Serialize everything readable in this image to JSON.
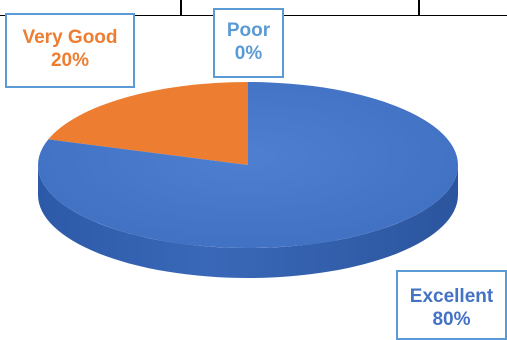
{
  "chart_data": {
    "type": "pie",
    "title": "",
    "categories": [
      "Excellent",
      "Very Good",
      "Poor"
    ],
    "values": [
      80,
      20,
      0
    ],
    "value_labels": [
      "80%",
      "20%",
      "0%"
    ],
    "colors": {
      "Excellent": "#4472c4",
      "Very Good": "#ed7d31",
      "Poor": "#a5a5a5"
    },
    "style": "3d-pie",
    "legend": "none",
    "data_labels": "callouts"
  }
}
